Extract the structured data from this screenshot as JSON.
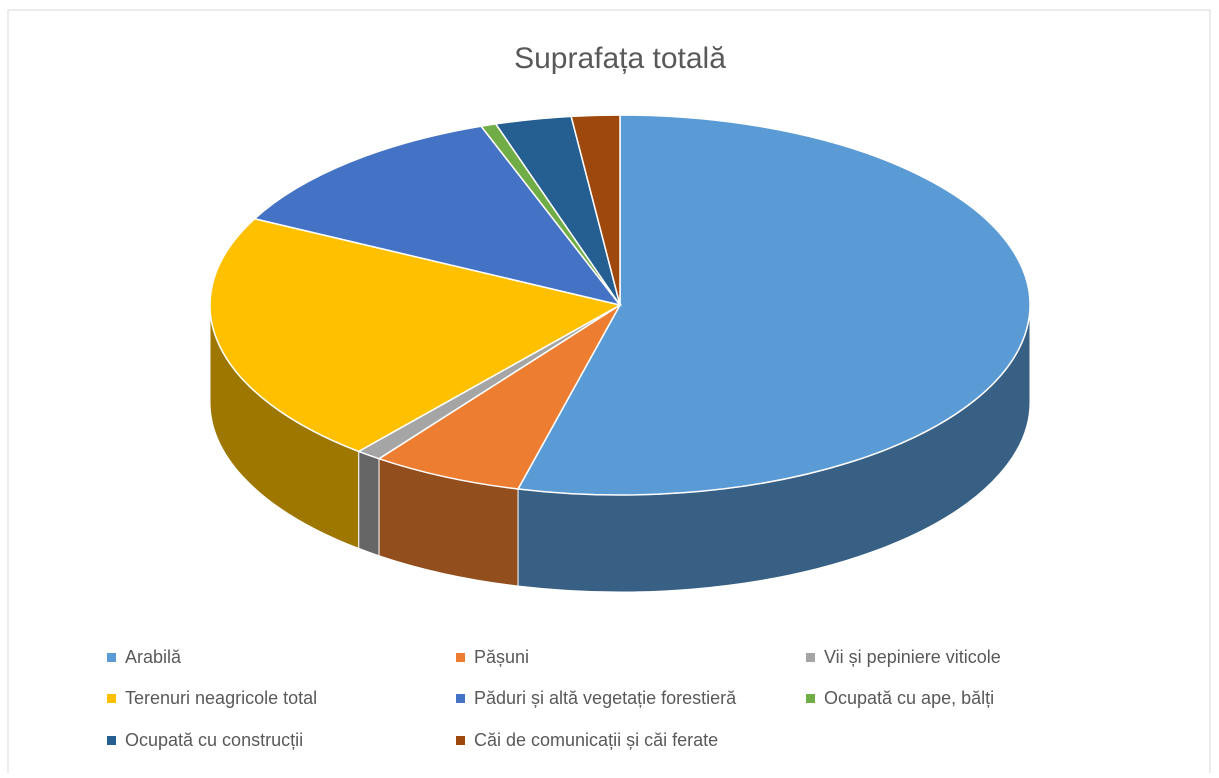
{
  "chart_data": {
    "type": "pie3d",
    "title": "Suprafața totală",
    "categories": [
      "Arabilă",
      "Pășuni",
      "Vii și pepiniere viticole",
      "Terenuri neagricole total",
      "Păduri și altă vegetație forestieră",
      "Ocupată cu ape, bălți",
      "Ocupată cu construcții",
      "Căi de comunicații și căi ferate"
    ],
    "values": [
      54,
      6,
      1,
      21.5,
      12,
      0.6,
      3,
      1.9
    ],
    "colors": [
      "#5b9bd5",
      "#ed7d31",
      "#a5a5a5",
      "#ffc000",
      "#4472c4",
      "#70ad47",
      "#255e91",
      "#9e480e"
    ],
    "legend": "bottom"
  }
}
